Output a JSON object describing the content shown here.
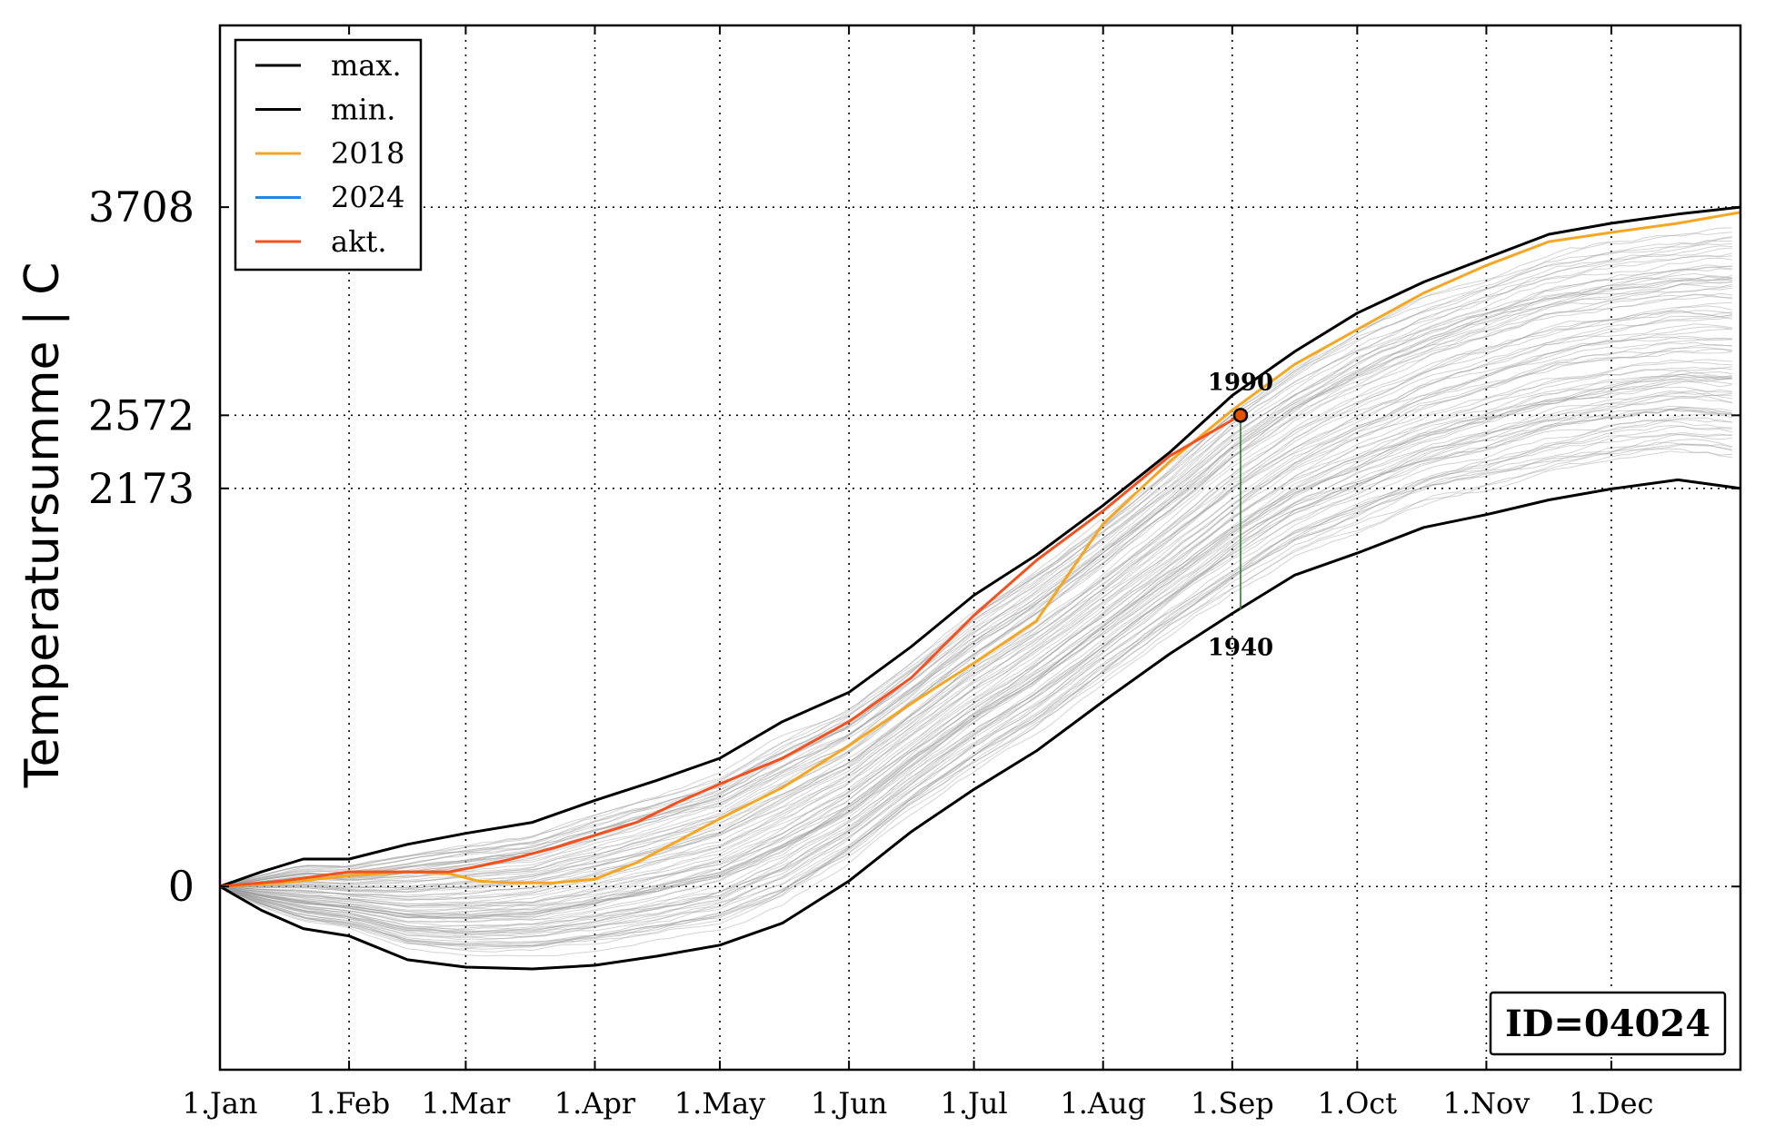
{
  "chart_data": {
    "type": "line",
    "title": "",
    "xlabel": "",
    "ylabel": "Temperatursumme | C",
    "x_ticks": [
      {
        "label": "1.Jan",
        "day": 0
      },
      {
        "label": "1.Feb",
        "day": 31
      },
      {
        "label": "1.Mar",
        "day": 59
      },
      {
        "label": "1.Apr",
        "day": 90
      },
      {
        "label": "1.May",
        "day": 120
      },
      {
        "label": "1.Jun",
        "day": 151
      },
      {
        "label": "1.Jul",
        "day": 181
      },
      {
        "label": "1.Aug",
        "day": 212
      },
      {
        "label": "1.Sep",
        "day": 243
      },
      {
        "label": "1.Oct",
        "day": 273
      },
      {
        "label": "1.Nov",
        "day": 304
      },
      {
        "label": "1.Dec",
        "day": 334
      }
    ],
    "xlim": [
      0,
      365
    ],
    "ylim": [
      -1000,
      4700
    ],
    "y_ticks": [
      0,
      2173,
      2572,
      3708
    ],
    "grid": true,
    "legend_placement": "top-left",
    "series": [
      {
        "name": "max.",
        "color": "#000000",
        "x": [
          0,
          10,
          20,
          31,
          45,
          59,
          75,
          90,
          105,
          120,
          135,
          151,
          166,
          181,
          196,
          212,
          228,
          243,
          258,
          273,
          289,
          304,
          319,
          334,
          350,
          365
        ],
        "y": [
          0,
          80,
          150,
          150,
          230,
          290,
          350,
          470,
          580,
          700,
          900,
          1060,
          1310,
          1590,
          1810,
          2080,
          2370,
          2680,
          2920,
          3130,
          3300,
          3430,
          3560,
          3620,
          3670,
          3708
        ]
      },
      {
        "name": "min.",
        "color": "#000000",
        "x": [
          0,
          10,
          20,
          31,
          45,
          59,
          75,
          90,
          105,
          120,
          135,
          151,
          166,
          181,
          196,
          212,
          228,
          243,
          258,
          273,
          289,
          304,
          319,
          334,
          350,
          365
        ],
        "y": [
          0,
          -130,
          -230,
          -270,
          -400,
          -440,
          -450,
          -430,
          -380,
          -320,
          -200,
          30,
          300,
          530,
          740,
          1010,
          1270,
          1490,
          1700,
          1820,
          1960,
          2030,
          2110,
          2170,
          2220,
          2173
        ]
      },
      {
        "name": "2018",
        "color": "#f5a623",
        "x": [
          0,
          15,
          31,
          45,
          55,
          62,
          70,
          80,
          90,
          100,
          110,
          120,
          135,
          151,
          166,
          181,
          196,
          212,
          228,
          243,
          258,
          273,
          289,
          304,
          319,
          334,
          350,
          365
        ],
        "y": [
          0,
          20,
          60,
          80,
          70,
          30,
          20,
          20,
          40,
          130,
          250,
          370,
          540,
          770,
          1000,
          1220,
          1450,
          1980,
          2320,
          2600,
          2850,
          3040,
          3240,
          3390,
          3520,
          3570,
          3620,
          3680
        ]
      },
      {
        "name": "2024",
        "color": "#1e88e5",
        "x": [],
        "y": []
      },
      {
        "name": "akt.",
        "color": "#f4511e",
        "x": [
          0,
          15,
          31,
          45,
          55,
          62,
          70,
          80,
          90,
          100,
          110,
          120,
          135,
          151,
          166,
          181,
          196,
          212,
          228,
          245
        ],
        "y": [
          0,
          30,
          80,
          80,
          80,
          110,
          150,
          210,
          280,
          350,
          460,
          560,
          700,
          900,
          1140,
          1480,
          1780,
          2050,
          2350,
          2572
        ]
      }
    ],
    "marker": {
      "x": 245,
      "y": 2572
    },
    "range_line": {
      "x": 245,
      "y_top": 2572,
      "y_bottom": 1510
    },
    "annotations": [
      {
        "text": "1990",
        "x": 245,
        "y": 2572,
        "position": "above"
      },
      {
        "text": "1940",
        "x": 245,
        "y": 1510,
        "position": "below"
      }
    ],
    "id_box": "ID=04024"
  },
  "colors": {
    "background_lines": "#9e9e9e",
    "range_line": "#2e7d32",
    "marker_face": "#e65100"
  }
}
